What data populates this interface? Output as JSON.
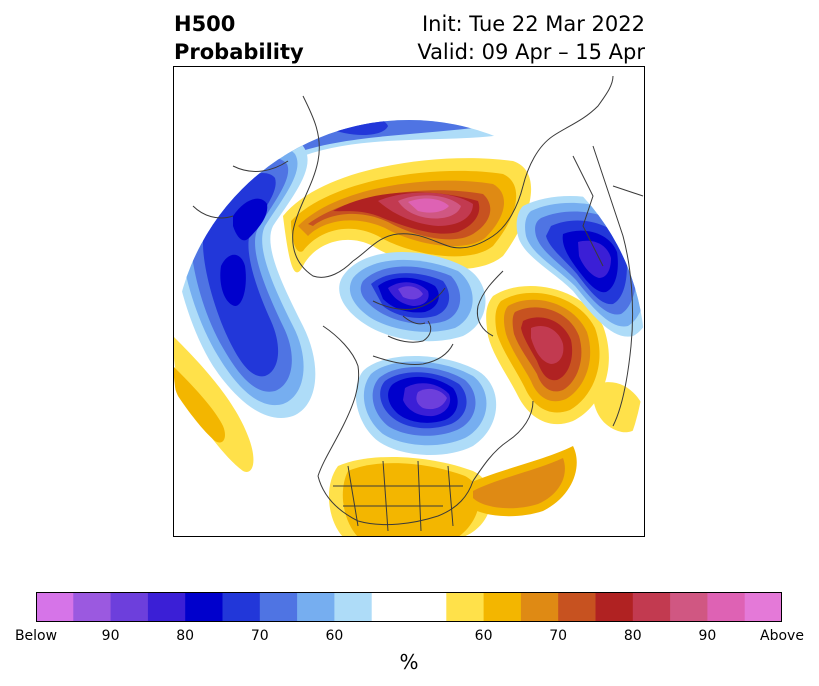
{
  "title": {
    "variable": "H500",
    "product": "Probability",
    "init": "Init: Tue 22 Mar 2022",
    "valid": "Valid: 09 Apr – 15 Apr"
  },
  "colorbar": {
    "colors": [
      "#d674e8",
      "#9b59e0",
      "#6d3fdc",
      "#3b1fd6",
      "#0000cc",
      "#2237d9",
      "#4f74e3",
      "#76aef0",
      "#aedcf8",
      "#ffffff",
      "#ffffff",
      "#ffe14a",
      "#f3b600",
      "#df8a14",
      "#c75220",
      "#b02222",
      "#c23a50",
      "#d05782",
      "#de62b4",
      "#e479d8"
    ],
    "tick_labels": [
      "Below",
      "90",
      "80",
      "70",
      "60",
      "",
      "60",
      "70",
      "80",
      "90",
      "Above"
    ],
    "unit": "%"
  },
  "map": {
    "projection": "polar-stereographic north",
    "features": [
      {
        "name": "warm-anomaly-n-canada",
        "sign": "above",
        "peak": "90"
      },
      {
        "name": "warm-anomaly-scandinavia",
        "sign": "above",
        "peak": "80"
      },
      {
        "name": "cold-anomaly-n-pacific",
        "sign": "below",
        "peak": "80"
      },
      {
        "name": "cold-anomaly-central-arctic",
        "sign": "below",
        "peak": "90"
      },
      {
        "name": "cold-anomaly-greenland",
        "sign": "below",
        "peak": "90"
      },
      {
        "name": "cold-anomaly-nw-russia",
        "sign": "below",
        "peak": "80"
      },
      {
        "name": "warm-anomaly-se-us",
        "sign": "above",
        "peak": "70"
      }
    ]
  }
}
